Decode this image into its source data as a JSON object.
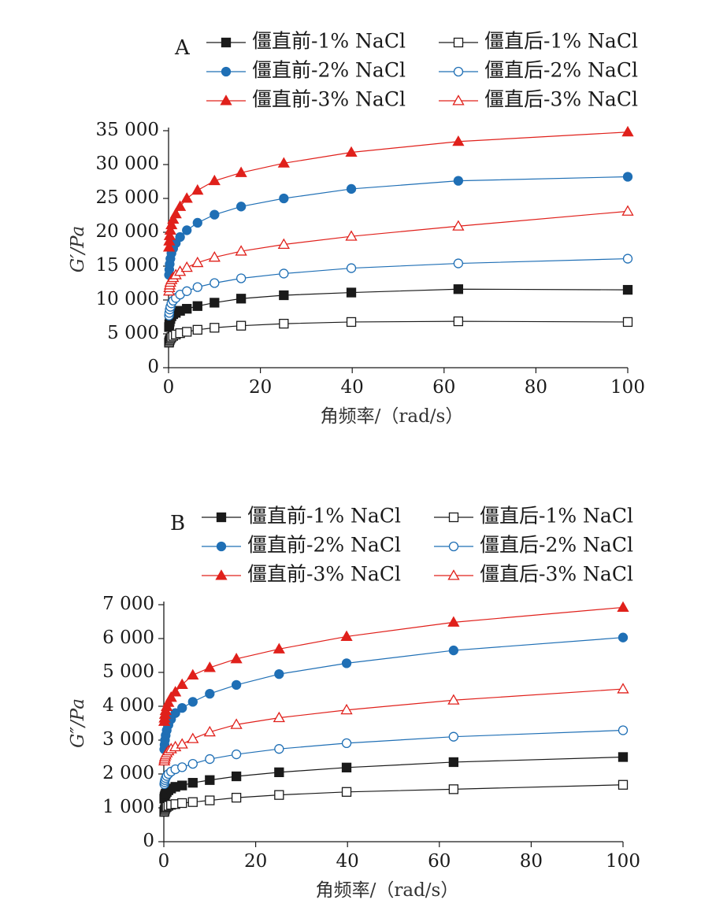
{
  "chart_data": [
    {
      "type": "line",
      "panel_label": "A",
      "xlabel": "角频率/（rad/s）",
      "ylabel": "G′/Pa",
      "xlim": [
        0,
        100
      ],
      "ylim": [
        0,
        35000
      ],
      "xticks": [
        0,
        20,
        40,
        60,
        80,
        100
      ],
      "xtick_labels": [
        "0",
        "20",
        "40",
        "60",
        "80",
        "100"
      ],
      "yticks": [
        0,
        5000,
        10000,
        15000,
        20000,
        25000,
        30000,
        35000
      ],
      "ytick_labels": [
        "0",
        "5 000",
        "10 000",
        "15 000",
        "20 000",
        "25 000",
        "30 000",
        "35 000"
      ],
      "grid": false,
      "legend_position": "top",
      "x": [
        0.1,
        0.158,
        0.251,
        0.398,
        0.631,
        1.0,
        1.58,
        2.51,
        3.98,
        6.31,
        10.0,
        15.8,
        25.1,
        39.8,
        63.1,
        100
      ],
      "series": [
        {
          "name": "僵直前-1% NaCl",
          "color": "#1a1a1a",
          "marker": "square",
          "filled": true,
          "values": [
            6000,
            6400,
            6800,
            7200,
            7600,
            7900,
            8100,
            8400,
            8700,
            9100,
            9600,
            10200,
            10700,
            11100,
            11600,
            11500
          ]
        },
        {
          "name": "僵直后-1% NaCl",
          "color": "#1a1a1a",
          "marker": "square",
          "filled": false,
          "values": [
            3700,
            3900,
            4100,
            4300,
            4500,
            4700,
            4900,
            5100,
            5300,
            5600,
            5900,
            6200,
            6500,
            6750,
            6850,
            6750
          ]
        },
        {
          "name": "僵直前-2% NaCl",
          "color": "#1f6fb5",
          "marker": "circle",
          "filled": true,
          "values": [
            13700,
            14500,
            15300,
            16100,
            16900,
            17600,
            18400,
            19300,
            20300,
            21400,
            22600,
            23800,
            25000,
            26400,
            27600,
            28200
          ]
        },
        {
          "name": "僵直后-2% NaCl",
          "color": "#1f6fb5",
          "marker": "circle",
          "filled": false,
          "values": [
            7700,
            8100,
            8600,
            9000,
            9500,
            9900,
            10300,
            10800,
            11300,
            11900,
            12500,
            13200,
            13900,
            14700,
            15400,
            16100
          ]
        },
        {
          "name": "僵直前-3% NaCl",
          "color": "#e0201b",
          "marker": "triangle",
          "filled": true,
          "values": [
            17800,
            18700,
            19500,
            20300,
            21100,
            21900,
            22700,
            23800,
            25000,
            26200,
            27600,
            28800,
            30200,
            31800,
            33400,
            34800
          ]
        },
        {
          "name": "僵直后-3% NaCl",
          "color": "#e0201b",
          "marker": "triangle",
          "filled": false,
          "values": [
            11300,
            11800,
            12200,
            12600,
            13000,
            13300,
            13700,
            14200,
            14800,
            15500,
            16300,
            17200,
            18200,
            19400,
            20900,
            23100
          ]
        }
      ]
    },
    {
      "type": "line",
      "panel_label": "B",
      "xlabel": "角频率/（rad/s）",
      "ylabel": "G″/Pa",
      "xlim": [
        0,
        100
      ],
      "ylim": [
        0,
        7000
      ],
      "xticks": [
        0,
        20,
        40,
        60,
        80,
        100
      ],
      "xtick_labels": [
        "0",
        "20",
        "40",
        "60",
        "80",
        "100"
      ],
      "yticks": [
        0,
        1000,
        2000,
        3000,
        4000,
        5000,
        6000,
        7000
      ],
      "ytick_labels": [
        "0",
        "1 000",
        "2 000",
        "3 000",
        "4 000",
        "5 000",
        "6 000",
        "7 000"
      ],
      "grid": false,
      "legend_position": "top",
      "x": [
        0.1,
        0.158,
        0.251,
        0.398,
        0.631,
        1.0,
        1.58,
        2.51,
        3.98,
        6.31,
        10.0,
        15.8,
        25.1,
        39.8,
        63.1,
        100
      ],
      "series": [
        {
          "name": "僵直前-1% NaCl",
          "color": "#1a1a1a",
          "marker": "square",
          "filled": true,
          "values": [
            1270,
            1320,
            1370,
            1420,
            1470,
            1520,
            1570,
            1620,
            1660,
            1740,
            1820,
            1930,
            2050,
            2190,
            2350,
            2500
          ]
        },
        {
          "name": "僵直后-1% NaCl",
          "color": "#1a1a1a",
          "marker": "square",
          "filled": false,
          "values": [
            880,
            920,
            960,
            1000,
            1030,
            1060,
            1090,
            1110,
            1140,
            1170,
            1220,
            1300,
            1380,
            1470,
            1550,
            1680
          ]
        },
        {
          "name": "僵直前-2% NaCl",
          "color": "#1f6fb5",
          "marker": "circle",
          "filled": true,
          "values": [
            2730,
            2860,
            3000,
            3140,
            3290,
            3450,
            3620,
            3800,
            3950,
            4130,
            4370,
            4630,
            4950,
            5270,
            5650,
            6030
          ]
        },
        {
          "name": "僵直后-2% NaCl",
          "color": "#1f6fb5",
          "marker": "circle",
          "filled": false,
          "values": [
            1700,
            1760,
            1820,
            1880,
            1940,
            2000,
            2070,
            2140,
            2200,
            2300,
            2440,
            2580,
            2740,
            2910,
            3100,
            3290
          ]
        },
        {
          "name": "僵直前-3% NaCl",
          "color": "#e0201b",
          "marker": "triangle",
          "filled": true,
          "values": [
            3550,
            3650,
            3760,
            3870,
            3990,
            4110,
            4260,
            4420,
            4640,
            4920,
            5140,
            5400,
            5690,
            6060,
            6480,
            6920
          ]
        },
        {
          "name": "僵直后-3% NaCl",
          "color": "#e0201b",
          "marker": "triangle",
          "filled": false,
          "values": [
            2380,
            2440,
            2500,
            2560,
            2620,
            2680,
            2740,
            2800,
            2880,
            3040,
            3240,
            3460,
            3660,
            3890,
            4180,
            4510
          ]
        }
      ]
    }
  ]
}
